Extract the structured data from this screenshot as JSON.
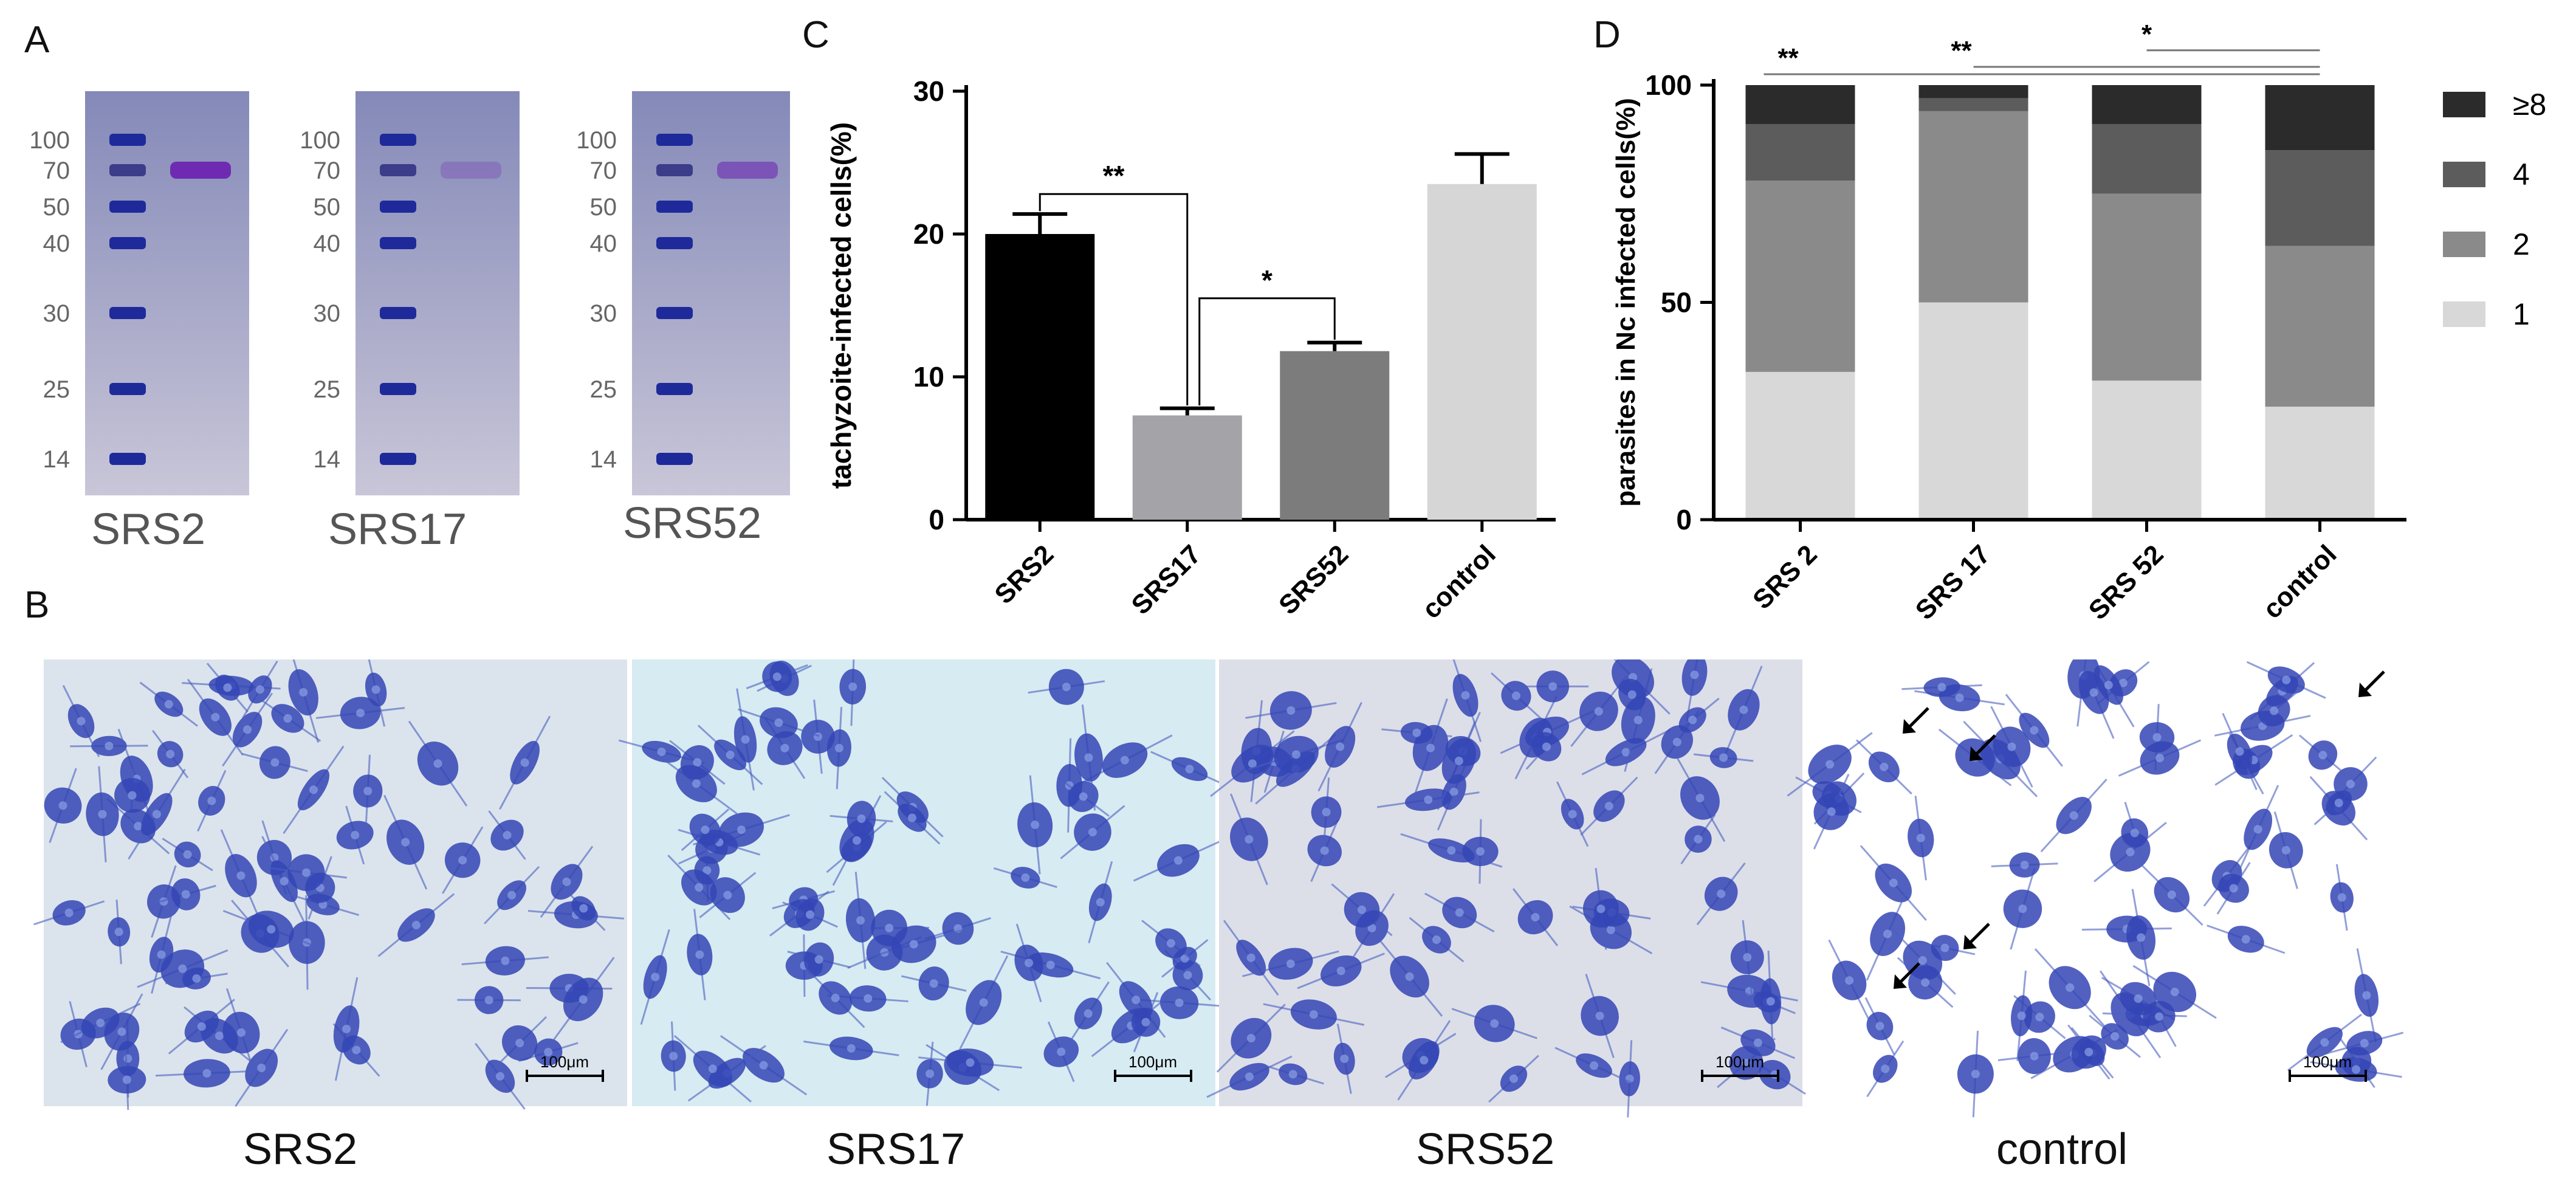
{
  "panel_letters": {
    "a": "A",
    "b": "B",
    "c": "C",
    "d": "D"
  },
  "gels": [
    {
      "label": "SRS2",
      "markers": [
        "100",
        "70",
        "50",
        "40",
        "30",
        "25",
        "14"
      ],
      "band_kda": 70,
      "band_intensity": "strong"
    },
    {
      "label": "SRS17",
      "markers": [
        "100",
        "70",
        "50",
        "40",
        "30",
        "25",
        "14"
      ],
      "band_kda": 70,
      "band_intensity": "faint"
    },
    {
      "label": "SRS52",
      "markers": [
        "100",
        "70",
        "50",
        "40",
        "30",
        "25",
        "14"
      ],
      "band_kda": 70,
      "band_intensity": "medium"
    }
  ],
  "micrographs": [
    {
      "caption": "SRS2",
      "scale_bar": "100μm",
      "arrows": 0
    },
    {
      "caption": "SRS17",
      "scale_bar": "100μm",
      "arrows": 0
    },
    {
      "caption": "SRS52",
      "scale_bar": "100μm",
      "arrows": 0
    },
    {
      "caption": "control",
      "scale_bar": "100μm",
      "arrows": 5
    }
  ],
  "chart_data": [
    {
      "panel": "C",
      "type": "bar",
      "title": "",
      "xlabel": "",
      "ylabel": "tachyzoite-infected cells(%)",
      "categories": [
        "SRS2",
        "SRS17",
        "SRS52",
        "control"
      ],
      "values": [
        20.0,
        7.3,
        11.8,
        23.5
      ],
      "errors": [
        1.4,
        0.5,
        0.6,
        2.1
      ],
      "colors": [
        "#000000",
        "#a4a4a8",
        "#7c7c7c",
        "#d6d6d6"
      ],
      "ylim": [
        0,
        30
      ],
      "yticks": [
        "0",
        "10",
        "20",
        "30"
      ],
      "grid": false,
      "annotations": [
        {
          "between": [
            "SRS2",
            "SRS17"
          ],
          "text": "**"
        },
        {
          "between": [
            "SRS17",
            "SRS52"
          ],
          "text": "*"
        }
      ]
    },
    {
      "panel": "D",
      "type": "bar",
      "stacked": true,
      "title": "",
      "xlabel": "",
      "ylabel": "parasites in Nc infected cells(%)",
      "categories": [
        "SRS 2",
        "SRS 17",
        "SRS 52",
        "control"
      ],
      "series": [
        {
          "name": "1",
          "values": [
            34,
            50,
            32,
            26
          ],
          "color": "#d8d8d8"
        },
        {
          "name": "2",
          "values": [
            44,
            44,
            43,
            37
          ],
          "color": "#8a8a8a"
        },
        {
          "name": "4",
          "values": [
            13,
            3,
            16,
            22
          ],
          "color": "#5c5c5c"
        },
        {
          "name": "≥8",
          "values": [
            9,
            3,
            9,
            15
          ],
          "color": "#2b2b2b"
        }
      ],
      "ylim": [
        0,
        100
      ],
      "yticks": [
        "0",
        "50",
        "100"
      ],
      "legend_position": "right",
      "grid": false,
      "annotations": [
        {
          "between": [
            "SRS 2",
            "control"
          ],
          "text": "**"
        },
        {
          "between": [
            "SRS 17",
            "control"
          ],
          "text": "**"
        },
        {
          "between": [
            "SRS 52",
            "control"
          ],
          "text": "*"
        }
      ]
    }
  ]
}
